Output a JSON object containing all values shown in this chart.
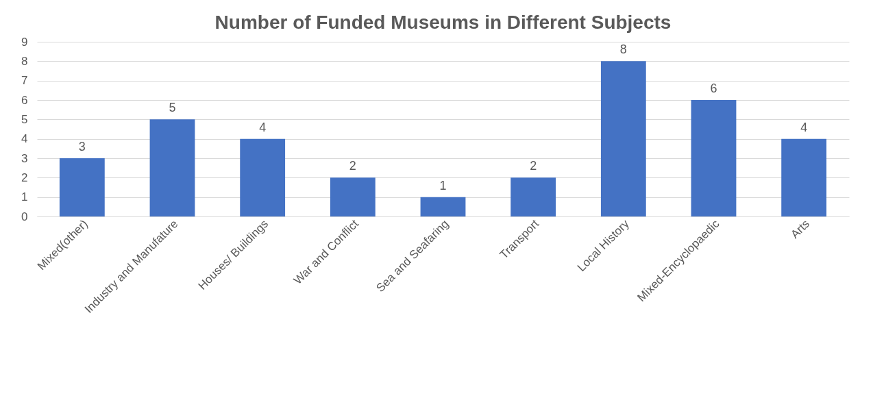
{
  "chart_data": {
    "type": "bar",
    "title": "Number of Funded Museums in Different Subjects",
    "categories": [
      "Mixed(other)",
      "Industry and Manufature",
      "Houses/ Buildings",
      "War and Conflict",
      "Sea and Seafaring",
      "Transport",
      "Local History",
      "Mixed-Encyclopaedic",
      "Arts"
    ],
    "values": [
      3,
      5,
      4,
      2,
      1,
      2,
      8,
      6,
      4
    ],
    "color": "#4472c4",
    "ylim": [
      0,
      9
    ],
    "yticks": [
      0,
      1,
      2,
      3,
      4,
      5,
      6,
      7,
      8,
      9
    ],
    "grid": "y",
    "data_labels": true
  }
}
